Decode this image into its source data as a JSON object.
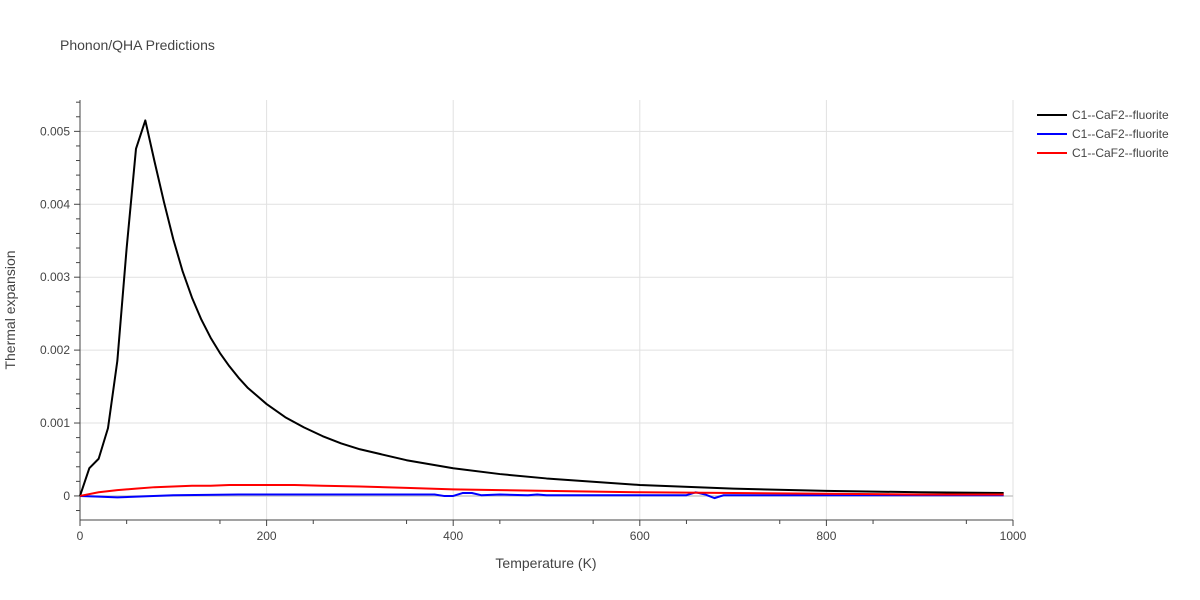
{
  "chart_data": {
    "type": "line",
    "title": "Phonon/QHA Predictions",
    "xlabel": "Temperature (K)",
    "ylabel": "Thermal expansion",
    "xlim": [
      0,
      1000
    ],
    "ylim": [
      -0.00033,
      0.00543
    ],
    "xticks": [
      0,
      200,
      400,
      600,
      800,
      1000
    ],
    "yticks": [
      0,
      0.001,
      0.002,
      0.003,
      0.004,
      0.005
    ],
    "ytick_labels": [
      "0",
      "0.001",
      "0.002",
      "0.003",
      "0.004",
      "0.005"
    ],
    "grid": true,
    "legend_position": "top-right",
    "series": [
      {
        "name": "C1--CaF2--fluorite",
        "color": "#000000",
        "x": [
          0,
          10,
          20,
          30,
          40,
          50,
          60,
          70,
          80,
          90,
          100,
          110,
          120,
          130,
          140,
          150,
          160,
          170,
          180,
          190,
          200,
          220,
          240,
          260,
          280,
          300,
          350,
          400,
          450,
          500,
          600,
          700,
          800,
          900,
          990
        ],
        "y": [
          0,
          0.00038,
          0.00051,
          0.00093,
          0.00185,
          0.0034,
          0.00476,
          0.00515,
          0.00458,
          0.00403,
          0.00352,
          0.00308,
          0.00272,
          0.00242,
          0.00217,
          0.00196,
          0.00178,
          0.00162,
          0.00148,
          0.00137,
          0.00126,
          0.00108,
          0.00094,
          0.00082,
          0.00072,
          0.00064,
          0.00049,
          0.00038,
          0.0003,
          0.00024,
          0.00015,
          0.0001,
          7e-05,
          5e-05,
          4e-05
        ]
      },
      {
        "name": "C1--CaF2--fluorite",
        "color": "#0000ff",
        "x": [
          0,
          20,
          40,
          100,
          170,
          200,
          300,
          380,
          390,
          400,
          410,
          420,
          430,
          450,
          480,
          490,
          500,
          510,
          600,
          650,
          660,
          670,
          680,
          690,
          750,
          800,
          900,
          990
        ],
        "y": [
          0,
          -1e-05,
          -2e-05,
          1e-05,
          2e-05,
          2e-05,
          2e-05,
          2e-05,
          0.0,
          0.0,
          4e-05,
          4e-05,
          1e-05,
          2e-05,
          1e-05,
          2e-05,
          1e-05,
          1e-05,
          1e-05,
          1e-05,
          5e-05,
          2e-05,
          -3e-05,
          1e-05,
          1e-05,
          1e-05,
          1e-05,
          1e-05
        ]
      },
      {
        "name": "C1--CaF2--fluorite",
        "color": "#ff0000",
        "x": [
          0,
          20,
          40,
          60,
          80,
          100,
          120,
          140,
          160,
          180,
          200,
          230,
          260,
          300,
          350,
          400,
          450,
          500,
          600,
          700,
          800,
          900,
          990
        ],
        "y": [
          0,
          5e-05,
          8e-05,
          0.0001,
          0.00012,
          0.00013,
          0.00014,
          0.00014,
          0.00015,
          0.00015,
          0.00015,
          0.00015,
          0.00014,
          0.00013,
          0.00011,
          9e-05,
          8e-05,
          7e-05,
          5e-05,
          4e-05,
          3e-05,
          2e-05,
          2e-05
        ]
      }
    ]
  }
}
